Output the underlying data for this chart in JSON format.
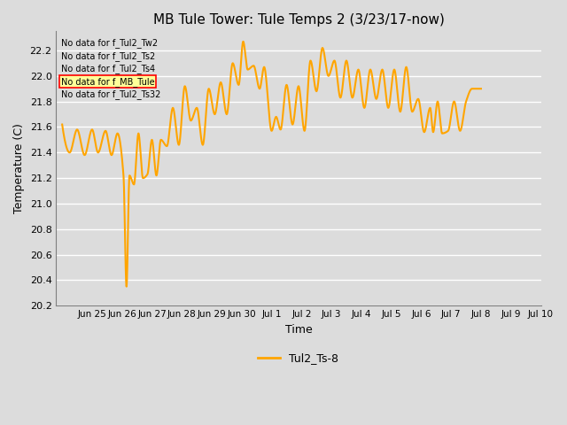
{
  "title": "MB Tule Tower: Tule Temps 2 (3/23/17-now)",
  "xlabel": "Time",
  "ylabel": "Temperature (C)",
  "ylim": [
    20.2,
    22.35
  ],
  "yticks": [
    20.2,
    20.4,
    20.6,
    20.8,
    21.0,
    21.2,
    21.4,
    21.6,
    21.8,
    22.0,
    22.2
  ],
  "line_color": "#FFA500",
  "line_label": "Tul2_Ts-8",
  "bg_color": "#DCDCDC",
  "no_data_labels": [
    "No data for f_Tul2_Tw2",
    "No data for f_Tul2_Ts2",
    "No data for f_Tul2_Ts4",
    "No data for f_MB_Tule",
    "No data for f_Tul2_Ts32"
  ],
  "x_tick_labels": [
    "Jun 25",
    "Jun 26",
    "Jun 27",
    "Jun 28",
    "Jun 29",
    "Jun 30",
    "Jul 1",
    "Jul 2",
    "Jul 3",
    "Jul 4",
    "Jul 5",
    "Jul 6",
    "Jul 7",
    "Jul 8",
    "Jul 9",
    "Jul 10"
  ],
  "nd_box_color": "#FFFF99",
  "nd_box_border": "#FF0000"
}
